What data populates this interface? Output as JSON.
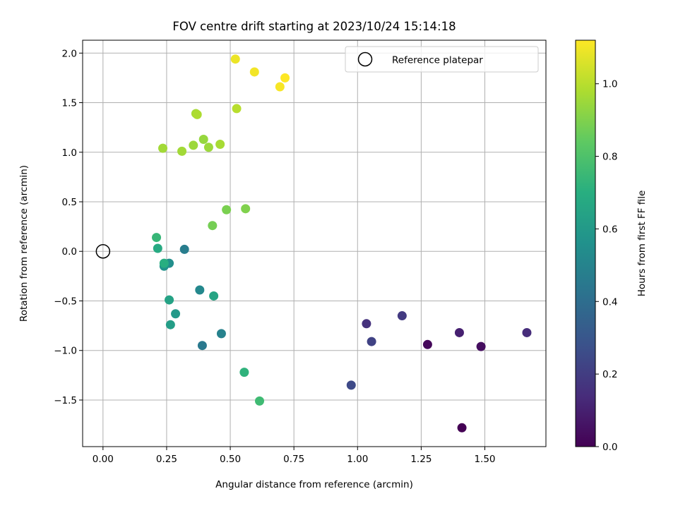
{
  "chart_data": {
    "type": "scatter",
    "title": "FOV centre drift starting at 2023/10/24 15:14:18",
    "xlabel": "Angular distance from reference (arcmin)",
    "ylabel": "Rotation from reference (arcmin)",
    "xlim": [
      -0.08,
      1.74
    ],
    "ylim": [
      -1.97,
      2.13
    ],
    "x_ticks": [
      0.0,
      0.25,
      0.5,
      0.75,
      1.0,
      1.25,
      1.5
    ],
    "x_tick_labels": [
      "0.00",
      "0.25",
      "0.50",
      "0.75",
      "1.00",
      "1.25",
      "1.50"
    ],
    "y_ticks": [
      -1.5,
      -1.0,
      -0.5,
      0.0,
      0.5,
      1.0,
      1.5,
      2.0
    ],
    "y_tick_labels": [
      "−1.5",
      "−1.0",
      "−0.5",
      "0.0",
      "0.5",
      "1.0",
      "1.5",
      "2.0"
    ],
    "grid": true,
    "legend": {
      "label": "Reference platepar",
      "placement": "top-right"
    },
    "reference_point": {
      "x": 0.0,
      "y": 0.0
    },
    "colormap": "viridis",
    "colorbar": {
      "label": "Hours from first FF file",
      "range": [
        0.0,
        1.12
      ],
      "ticks": [
        0.0,
        0.2,
        0.4,
        0.6,
        0.8,
        1.0
      ],
      "tick_labels": [
        "0.0",
        "0.2",
        "0.4",
        "0.6",
        "0.8",
        "1.0"
      ]
    },
    "points": [
      {
        "x": 1.41,
        "y": -1.78,
        "c": 0.0
      },
      {
        "x": 1.275,
        "y": -0.94,
        "c": 0.02
      },
      {
        "x": 1.485,
        "y": -0.96,
        "c": 0.04
      },
      {
        "x": 1.4,
        "y": -0.82,
        "c": 0.1
      },
      {
        "x": 1.665,
        "y": -0.82,
        "c": 0.14
      },
      {
        "x": 1.035,
        "y": -0.73,
        "c": 0.16
      },
      {
        "x": 1.175,
        "y": -0.65,
        "c": 0.19
      },
      {
        "x": 1.055,
        "y": -0.91,
        "c": 0.22
      },
      {
        "x": 0.975,
        "y": -1.35,
        "c": 0.25
      },
      {
        "x": 0.39,
        "y": -0.95,
        "c": 0.45
      },
      {
        "x": 0.465,
        "y": -0.83,
        "c": 0.49
      },
      {
        "x": 0.32,
        "y": 0.02,
        "c": 0.47
      },
      {
        "x": 0.38,
        "y": -0.39,
        "c": 0.52
      },
      {
        "x": 0.26,
        "y": -0.12,
        "c": 0.55
      },
      {
        "x": 0.24,
        "y": -0.15,
        "c": 0.57
      },
      {
        "x": 0.285,
        "y": -0.63,
        "c": 0.6
      },
      {
        "x": 0.265,
        "y": -0.74,
        "c": 0.62
      },
      {
        "x": 0.26,
        "y": -0.49,
        "c": 0.64
      },
      {
        "x": 0.435,
        "y": -0.45,
        "c": 0.65
      },
      {
        "x": 0.215,
        "y": 0.03,
        "c": 0.68
      },
      {
        "x": 0.24,
        "y": -0.12,
        "c": 0.7
      },
      {
        "x": 0.555,
        "y": -1.22,
        "c": 0.72
      },
      {
        "x": 0.21,
        "y": 0.14,
        "c": 0.74
      },
      {
        "x": 0.615,
        "y": -1.51,
        "c": 0.76
      },
      {
        "x": 0.43,
        "y": 0.26,
        "c": 0.88
      },
      {
        "x": 0.485,
        "y": 0.42,
        "c": 0.89
      },
      {
        "x": 0.56,
        "y": 0.43,
        "c": 0.9
      },
      {
        "x": 0.235,
        "y": 1.04,
        "c": 0.96
      },
      {
        "x": 0.31,
        "y": 1.01,
        "c": 0.96
      },
      {
        "x": 0.355,
        "y": 1.07,
        "c": 0.95
      },
      {
        "x": 0.395,
        "y": 1.13,
        "c": 0.94
      },
      {
        "x": 0.415,
        "y": 1.05,
        "c": 0.95
      },
      {
        "x": 0.46,
        "y": 1.08,
        "c": 0.97
      },
      {
        "x": 0.365,
        "y": 1.39,
        "c": 0.97
      },
      {
        "x": 0.37,
        "y": 1.38,
        "c": 0.98
      },
      {
        "x": 0.525,
        "y": 1.44,
        "c": 1.0
      },
      {
        "x": 0.52,
        "y": 1.94,
        "c": 1.09
      },
      {
        "x": 0.595,
        "y": 1.81,
        "c": 1.1
      },
      {
        "x": 0.695,
        "y": 1.66,
        "c": 1.11
      },
      {
        "x": 0.715,
        "y": 1.75,
        "c": 1.12
      }
    ]
  }
}
